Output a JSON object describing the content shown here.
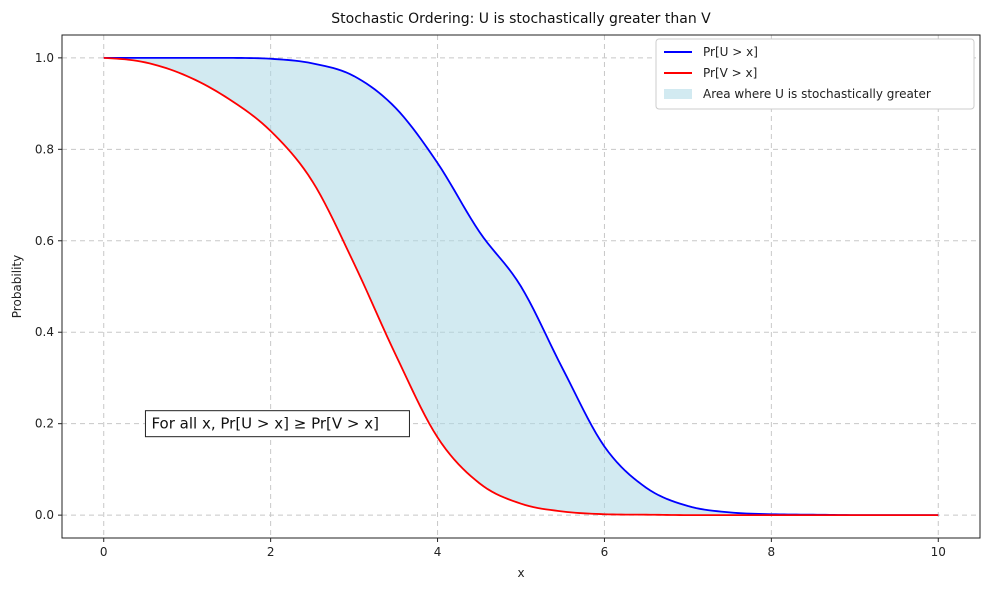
{
  "chart_data": {
    "type": "line",
    "title": "Stochastic Ordering: U is stochastically greater than V",
    "xlabel": "x",
    "ylabel": "Probability",
    "xlim": [
      -0.5,
      10.5
    ],
    "ylim": [
      -0.05,
      1.05
    ],
    "xticks": [
      "0",
      "2",
      "4",
      "6",
      "8",
      "10"
    ],
    "yticks": [
      "0.0",
      "0.2",
      "0.4",
      "0.6",
      "0.8",
      "1.0"
    ],
    "grid": true,
    "legend_placement": "top-right",
    "x": [
      0,
      0.5,
      1,
      1.5,
      2,
      2.5,
      3,
      3.5,
      4,
      4.5,
      5,
      5.5,
      6,
      6.5,
      7,
      7.5,
      8,
      8.5,
      9,
      9.5,
      10
    ],
    "series": [
      {
        "name": "Pr[U > x]",
        "color": "#0000ff",
        "values": [
          1.0,
          1.0,
          1.0,
          1.0,
          0.998,
          0.988,
          0.96,
          0.89,
          0.77,
          0.62,
          0.5,
          0.32,
          0.15,
          0.06,
          0.02,
          0.006,
          0.002,
          0.001,
          0.0,
          0.0,
          0.0
        ]
      },
      {
        "name": "Pr[V > x]",
        "color": "#ff0000",
        "values": [
          1.0,
          0.99,
          0.96,
          0.91,
          0.84,
          0.73,
          0.55,
          0.35,
          0.17,
          0.07,
          0.025,
          0.008,
          0.002,
          0.001,
          0.0,
          0.0,
          0.0,
          0.0,
          0.0,
          0.0,
          0.0
        ]
      }
    ],
    "fill": {
      "name": "Area where U is stochastically greater",
      "color": "#add8e6"
    },
    "annotation": {
      "text": "For all x, Pr[U > x] ≥ Pr[V > x]",
      "x": 0.5,
      "y": 0.2
    }
  }
}
